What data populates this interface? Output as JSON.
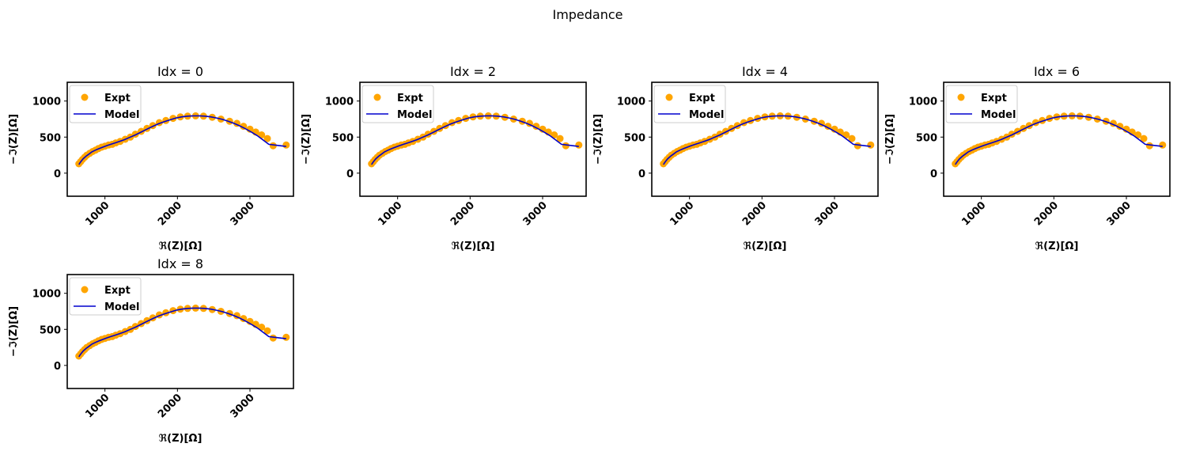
{
  "figure": {
    "suptitle": "Impedance"
  },
  "legend": {
    "expt_label": "Expt",
    "model_label": "Model",
    "placement": "upper-left"
  },
  "colors": {
    "expt": "#FFA500",
    "model": "#0000CD",
    "axes": "#000000",
    "background": "#ffffff"
  },
  "chart_data": [
    {
      "type": "scatter",
      "title": "Idx = 0",
      "xlabel": "ℜ(Z)[Ω]",
      "ylabel": "−ℑ(Z)[Ω]",
      "xlim": [
        480,
        3600
      ],
      "ylim": [
        -320,
        1260
      ],
      "xticks": [
        1000,
        2000,
        3000
      ],
      "yticks": [
        0,
        500,
        1000
      ],
      "grid": false,
      "series": [
        {
          "name": "Expt",
          "x": [
            640,
            665,
            690,
            720,
            750,
            790,
            830,
            870,
            910,
            955,
            1000,
            1050,
            1100,
            1150,
            1210,
            1280,
            1350,
            1420,
            1500,
            1580,
            1660,
            1750,
            1840,
            1940,
            2040,
            2140,
            2250,
            2360,
            2480,
            2600,
            2720,
            2820,
            2910,
            3000,
            3080,
            3160,
            3240,
            3320,
            3500
          ],
          "y": [
            130,
            160,
            190,
            220,
            250,
            275,
            300,
            320,
            340,
            360,
            375,
            390,
            400,
            420,
            440,
            470,
            500,
            540,
            580,
            620,
            660,
            700,
            730,
            760,
            780,
            790,
            795,
            790,
            775,
            750,
            720,
            690,
            650,
            610,
            570,
            530,
            480,
            380,
            390
          ]
        },
        {
          "name": "Model",
          "x": [
            640,
            660,
            680,
            700,
            740,
            780,
            820,
            870,
            920,
            970,
            1020,
            1080,
            1140,
            1200,
            1270,
            1340,
            1420,
            1500,
            1580,
            1660,
            1740,
            1820,
            1900,
            1980,
            2060,
            2140,
            2220,
            2300,
            2380,
            2460,
            2540,
            2620,
            2700,
            2780,
            2860,
            2940,
            3020,
            3100,
            3180,
            3260,
            3340,
            3420,
            3500
          ],
          "y": [
            120,
            150,
            175,
            200,
            235,
            265,
            295,
            320,
            340,
            360,
            380,
            400,
            420,
            440,
            465,
            495,
            530,
            570,
            610,
            650,
            685,
            715,
            740,
            765,
            780,
            790,
            795,
            795,
            790,
            780,
            765,
            745,
            720,
            690,
            655,
            615,
            570,
            520,
            460,
            400,
            390,
            380,
            370
          ]
        }
      ]
    },
    {
      "type": "scatter",
      "title": "Idx = 2",
      "xlabel": "ℜ(Z)[Ω]",
      "ylabel": "−ℑ(Z)[Ω]",
      "xlim": [
        480,
        3600
      ],
      "ylim": [
        -320,
        1260
      ],
      "xticks": [
        1000,
        2000,
        3000
      ],
      "yticks": [
        0,
        500,
        1000
      ],
      "grid": false,
      "series": [
        {
          "name": "Expt",
          "x": [
            640,
            665,
            690,
            720,
            750,
            790,
            830,
            870,
            910,
            955,
            1000,
            1050,
            1100,
            1150,
            1210,
            1280,
            1350,
            1420,
            1500,
            1580,
            1660,
            1750,
            1840,
            1940,
            2040,
            2140,
            2250,
            2360,
            2480,
            2600,
            2720,
            2820,
            2910,
            3000,
            3080,
            3160,
            3240,
            3320,
            3500
          ],
          "y": [
            130,
            160,
            190,
            220,
            250,
            275,
            300,
            320,
            340,
            360,
            375,
            390,
            400,
            420,
            440,
            470,
            500,
            540,
            580,
            620,
            660,
            700,
            730,
            760,
            780,
            790,
            795,
            790,
            775,
            750,
            720,
            690,
            650,
            610,
            570,
            530,
            480,
            380,
            390
          ]
        },
        {
          "name": "Model",
          "x": [
            640,
            660,
            680,
            700,
            740,
            780,
            820,
            870,
            920,
            970,
            1020,
            1080,
            1140,
            1200,
            1270,
            1340,
            1420,
            1500,
            1580,
            1660,
            1740,
            1820,
            1900,
            1980,
            2060,
            2140,
            2220,
            2300,
            2380,
            2460,
            2540,
            2620,
            2700,
            2780,
            2860,
            2940,
            3020,
            3100,
            3180,
            3260,
            3340,
            3420,
            3500
          ],
          "y": [
            120,
            150,
            175,
            200,
            235,
            265,
            295,
            320,
            340,
            360,
            380,
            400,
            420,
            440,
            465,
            495,
            530,
            570,
            610,
            650,
            685,
            715,
            740,
            765,
            780,
            790,
            795,
            795,
            790,
            780,
            765,
            745,
            720,
            690,
            655,
            615,
            570,
            520,
            460,
            400,
            390,
            380,
            370
          ]
        }
      ]
    },
    {
      "type": "scatter",
      "title": "Idx = 4",
      "xlabel": "ℜ(Z)[Ω]",
      "ylabel": "−ℑ(Z)[Ω]",
      "xlim": [
        480,
        3600
      ],
      "ylim": [
        -320,
        1260
      ],
      "xticks": [
        1000,
        2000,
        3000
      ],
      "yticks": [
        0,
        500,
        1000
      ],
      "grid": false,
      "series": [
        {
          "name": "Expt",
          "x": [
            640,
            665,
            690,
            720,
            750,
            790,
            830,
            870,
            910,
            955,
            1000,
            1050,
            1100,
            1150,
            1210,
            1280,
            1350,
            1420,
            1500,
            1580,
            1660,
            1750,
            1840,
            1940,
            2040,
            2140,
            2250,
            2360,
            2480,
            2600,
            2720,
            2820,
            2910,
            3000,
            3080,
            3160,
            3240,
            3320,
            3500
          ],
          "y": [
            130,
            160,
            190,
            220,
            250,
            275,
            300,
            320,
            340,
            360,
            375,
            390,
            400,
            420,
            440,
            470,
            500,
            540,
            580,
            620,
            660,
            700,
            730,
            760,
            780,
            790,
            795,
            790,
            775,
            750,
            720,
            690,
            650,
            610,
            570,
            530,
            480,
            380,
            390
          ]
        },
        {
          "name": "Model",
          "x": [
            640,
            660,
            680,
            700,
            740,
            780,
            820,
            870,
            920,
            970,
            1020,
            1080,
            1140,
            1200,
            1270,
            1340,
            1420,
            1500,
            1580,
            1660,
            1740,
            1820,
            1900,
            1980,
            2060,
            2140,
            2220,
            2300,
            2380,
            2460,
            2540,
            2620,
            2700,
            2780,
            2860,
            2940,
            3020,
            3100,
            3180,
            3260,
            3340,
            3420,
            3500
          ],
          "y": [
            120,
            150,
            175,
            200,
            235,
            265,
            295,
            320,
            340,
            360,
            380,
            400,
            420,
            440,
            465,
            495,
            530,
            570,
            610,
            650,
            685,
            715,
            740,
            765,
            780,
            790,
            795,
            795,
            790,
            780,
            765,
            745,
            720,
            690,
            655,
            615,
            570,
            520,
            460,
            400,
            390,
            380,
            370
          ]
        }
      ]
    },
    {
      "type": "scatter",
      "title": "Idx = 6",
      "xlabel": "ℜ(Z)[Ω]",
      "ylabel": "−ℑ(Z)[Ω]",
      "xlim": [
        480,
        3600
      ],
      "ylim": [
        -320,
        1260
      ],
      "xticks": [
        1000,
        2000,
        3000
      ],
      "yticks": [
        0,
        500,
        1000
      ],
      "grid": false,
      "series": [
        {
          "name": "Expt",
          "x": [
            640,
            665,
            690,
            720,
            750,
            790,
            830,
            870,
            910,
            955,
            1000,
            1050,
            1100,
            1150,
            1210,
            1280,
            1350,
            1420,
            1500,
            1580,
            1660,
            1750,
            1840,
            1940,
            2040,
            2140,
            2250,
            2360,
            2480,
            2600,
            2720,
            2820,
            2910,
            3000,
            3080,
            3160,
            3240,
            3320,
            3500
          ],
          "y": [
            130,
            160,
            190,
            220,
            250,
            275,
            300,
            320,
            340,
            360,
            375,
            390,
            400,
            420,
            440,
            470,
            500,
            540,
            580,
            620,
            660,
            700,
            730,
            760,
            780,
            790,
            795,
            790,
            775,
            750,
            720,
            690,
            650,
            610,
            570,
            530,
            480,
            380,
            390
          ]
        },
        {
          "name": "Model",
          "x": [
            640,
            660,
            680,
            700,
            740,
            780,
            820,
            870,
            920,
            970,
            1020,
            1080,
            1140,
            1200,
            1270,
            1340,
            1420,
            1500,
            1580,
            1660,
            1740,
            1820,
            1900,
            1980,
            2060,
            2140,
            2220,
            2300,
            2380,
            2460,
            2540,
            2620,
            2700,
            2780,
            2860,
            2940,
            3020,
            3100,
            3180,
            3260,
            3340,
            3420,
            3500
          ],
          "y": [
            120,
            150,
            175,
            200,
            235,
            265,
            295,
            320,
            340,
            360,
            380,
            400,
            420,
            440,
            465,
            495,
            530,
            570,
            610,
            650,
            685,
            715,
            740,
            765,
            780,
            790,
            795,
            795,
            790,
            780,
            765,
            745,
            720,
            690,
            655,
            615,
            570,
            520,
            460,
            400,
            390,
            380,
            370
          ]
        }
      ]
    },
    {
      "type": "scatter",
      "title": "Idx = 8",
      "xlabel": "ℜ(Z)[Ω]",
      "ylabel": "−ℑ(Z)[Ω]",
      "xlim": [
        480,
        3600
      ],
      "ylim": [
        -320,
        1260
      ],
      "xticks": [
        1000,
        2000,
        3000
      ],
      "yticks": [
        0,
        500,
        1000
      ],
      "grid": false,
      "series": [
        {
          "name": "Expt",
          "x": [
            640,
            665,
            690,
            720,
            750,
            790,
            830,
            870,
            910,
            955,
            1000,
            1050,
            1100,
            1150,
            1210,
            1280,
            1350,
            1420,
            1500,
            1580,
            1660,
            1750,
            1840,
            1940,
            2040,
            2140,
            2250,
            2360,
            2480,
            2600,
            2720,
            2820,
            2910,
            3000,
            3080,
            3160,
            3240,
            3320,
            3500
          ],
          "y": [
            130,
            160,
            190,
            220,
            250,
            275,
            300,
            320,
            340,
            360,
            375,
            390,
            400,
            420,
            440,
            470,
            500,
            540,
            580,
            620,
            660,
            700,
            730,
            760,
            780,
            790,
            795,
            790,
            775,
            750,
            720,
            690,
            650,
            610,
            570,
            530,
            480,
            380,
            390
          ]
        },
        {
          "name": "Model",
          "x": [
            640,
            660,
            680,
            700,
            740,
            780,
            820,
            870,
            920,
            970,
            1020,
            1080,
            1140,
            1200,
            1270,
            1340,
            1420,
            1500,
            1580,
            1660,
            1740,
            1820,
            1900,
            1980,
            2060,
            2140,
            2220,
            2300,
            2380,
            2460,
            2540,
            2620,
            2700,
            2780,
            2860,
            2940,
            3020,
            3100,
            3180,
            3260,
            3340,
            3420,
            3500
          ],
          "y": [
            120,
            150,
            175,
            200,
            235,
            265,
            295,
            320,
            340,
            360,
            380,
            400,
            420,
            440,
            465,
            495,
            530,
            570,
            610,
            650,
            685,
            715,
            740,
            765,
            780,
            790,
            795,
            795,
            790,
            780,
            765,
            745,
            720,
            690,
            655,
            615,
            570,
            520,
            460,
            400,
            390,
            380,
            370
          ]
        }
      ]
    }
  ]
}
